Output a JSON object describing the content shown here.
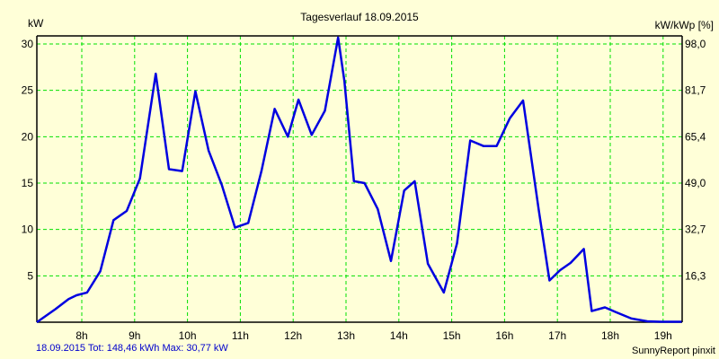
{
  "chart": {
    "title": "Tagesverlauf 18.09.2015",
    "ylabel_left": "kW",
    "ylabel_right": "kW/kWp [%]",
    "footer_left": "18.09.2015 Tot: 148,46 kWh Max: 30,77 kW",
    "footer_right": "SunnyReport pinxit"
  },
  "colors": {
    "background": "#ffffd8",
    "line": "#0000e0",
    "grid": "#00e000",
    "axis": "#000000"
  },
  "chart_data": {
    "type": "line",
    "title": "Tagesverlauf 18.09.2015",
    "xlabel": "",
    "ylabel": "kW",
    "ylabel_right": "kW/kWp [%]",
    "x_ticks": [
      "8h",
      "9h",
      "10h",
      "11h",
      "12h",
      "13h",
      "14h",
      "15h",
      "16h",
      "17h",
      "18h",
      "19h"
    ],
    "y_ticks_left": [
      "5",
      "10",
      "15",
      "20",
      "25",
      "30"
    ],
    "y_ticks_right": [
      "16,3",
      "32,7",
      "49,0",
      "65,4",
      "81,7",
      "98,0"
    ],
    "ylim": [
      0,
      30
    ],
    "xlim_hours": [
      7.15,
      19.35
    ],
    "grid": true,
    "series": [
      {
        "name": "kW",
        "x_hours": [
          7.15,
          7.5,
          7.75,
          7.9,
          8.1,
          8.35,
          8.6,
          8.85,
          9.1,
          9.4,
          9.65,
          9.9,
          10.15,
          10.4,
          10.65,
          10.9,
          11.15,
          11.4,
          11.65,
          11.9,
          12.1,
          12.35,
          12.6,
          12.85,
          12.97,
          13.15,
          13.35,
          13.6,
          13.85,
          14.1,
          14.3,
          14.55,
          14.85,
          15.1,
          15.35,
          15.6,
          15.85,
          16.1,
          16.35,
          16.65,
          16.85,
          17.05,
          17.25,
          17.5,
          17.65,
          17.9,
          18.1,
          18.4,
          18.7,
          18.95,
          19.35
        ],
        "values": [
          0,
          1.4,
          2.5,
          2.9,
          3.2,
          5.5,
          11,
          12,
          15.5,
          26.8,
          16.5,
          16.3,
          24.9,
          18.5,
          14.8,
          10.2,
          10.7,
          16.3,
          23,
          20,
          24,
          20.2,
          22.8,
          30.7,
          26,
          15.2,
          15,
          12.2,
          6.6,
          14.2,
          15.2,
          6.3,
          3.2,
          8.5,
          19.6,
          19,
          19,
          22,
          23.9,
          12,
          4.5,
          5.6,
          6.4,
          7.9,
          1.2,
          1.6,
          1.1,
          0.4,
          0.1,
          0.05,
          0.05
        ]
      }
    ]
  }
}
